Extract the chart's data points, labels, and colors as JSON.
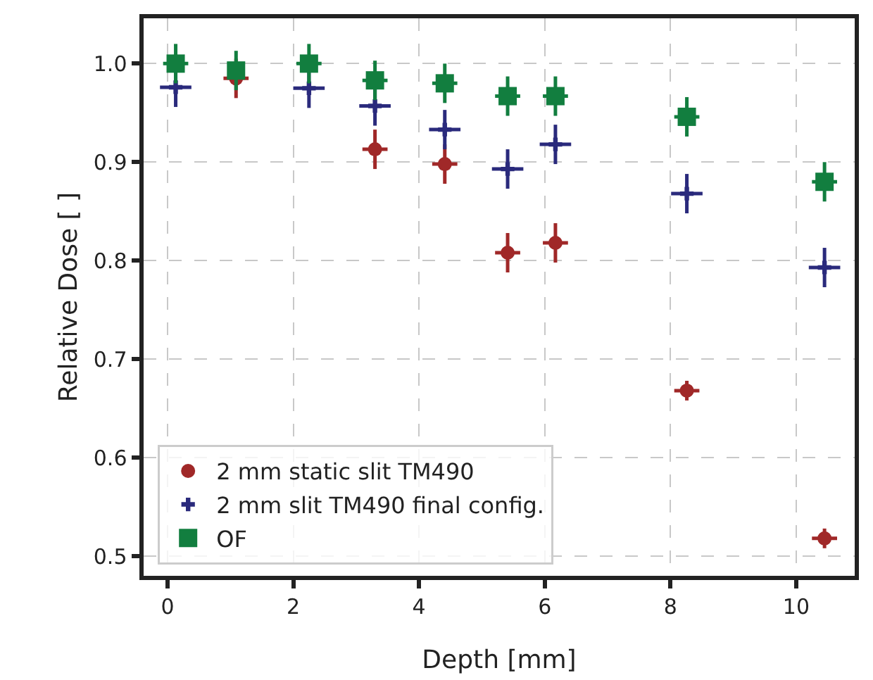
{
  "chart_data": {
    "type": "scatter",
    "xlabel": "Depth [mm]",
    "ylabel": "Relative Dose [ ]",
    "x": [
      0.13,
      1.09,
      2.25,
      3.3,
      4.41,
      5.41,
      6.17,
      8.26,
      10.45
    ],
    "series": [
      {
        "name": "2 mm static slit TM490",
        "color": "#a02828",
        "marker": "circle",
        "values": [
          null,
          0.985,
          null,
          0.913,
          0.898,
          0.808,
          0.818,
          0.668,
          0.518
        ],
        "errors": [
          null,
          0.02,
          null,
          0.02,
          0.02,
          0.02,
          0.02,
          0.01,
          0.01
        ],
        "xerrors": [
          null,
          0.2,
          null,
          0.2,
          0.2,
          0.2,
          0.2,
          0.2,
          0.2
        ]
      },
      {
        "name": "2 mm slit TM490 final config.",
        "color": "#2a2a7c",
        "marker": "cross",
        "values": [
          0.976,
          null,
          0.975,
          0.957,
          0.933,
          0.893,
          0.918,
          0.868,
          0.793
        ],
        "errors": [
          0.02,
          null,
          0.02,
          0.02,
          0.02,
          0.02,
          0.02,
          0.02,
          0.02
        ],
        "xerrors": [
          0.25,
          null,
          0.25,
          0.25,
          0.25,
          0.25,
          0.25,
          0.25,
          0.25
        ]
      },
      {
        "name": "OF",
        "color": "#127e3f",
        "marker": "square",
        "values": [
          1.0,
          0.993,
          1.0,
          0.983,
          0.98,
          0.967,
          0.967,
          0.946,
          0.88
        ],
        "errors": [
          0.02,
          0.02,
          0.02,
          0.02,
          0.02,
          0.02,
          0.02,
          0.02,
          0.02
        ],
        "xerrors": [
          0.2,
          null,
          0.2,
          0.2,
          0.2,
          0.2,
          0.2,
          0.2,
          0.2
        ]
      }
    ],
    "xlim": [
      -0.38,
      10.93
    ],
    "ylim": [
      0.48,
      1.046
    ],
    "xticks": [
      0,
      2,
      4,
      6,
      8,
      10
    ],
    "yticks": [
      0.5,
      0.6,
      0.7,
      0.8,
      0.9,
      {
        "value": 1,
        "label": "1.0"
      }
    ],
    "grid": true,
    "legend": "bottom left"
  }
}
